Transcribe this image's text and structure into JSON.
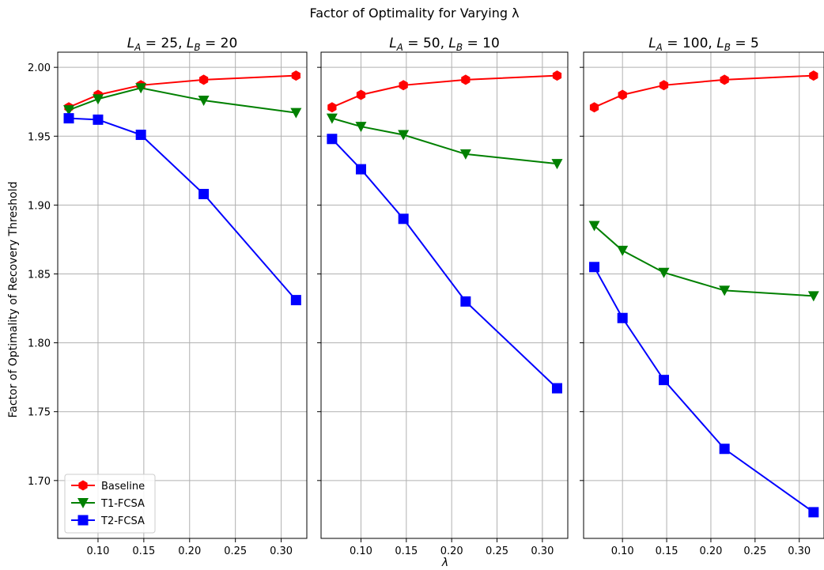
{
  "figure": {
    "suptitle": "Factor of Optimality for Varying λ",
    "ylabel": "Factor of Optimality of Recovery Threshold",
    "xlabel": "λ"
  },
  "legend": {
    "placement": "lower-left",
    "entries": [
      "Baseline",
      "T1-FCSA",
      "T2-FCSA"
    ]
  },
  "colors": {
    "Baseline": "#ff0000",
    "T1-FCSA": "#008000",
    "T2-FCSA": "#0000ff",
    "grid": "#b0b0b0"
  },
  "chart_data": [
    {
      "type": "line",
      "title": "L_A = 25, L_B = 20",
      "x": [
        0.0681,
        0.1,
        0.1468,
        0.2154,
        0.3162
      ],
      "series": [
        {
          "name": "Baseline",
          "marker": "hexagon",
          "values": [
            1.971,
            1.98,
            1.987,
            1.991,
            1.994
          ]
        },
        {
          "name": "T1-FCSA",
          "marker": "triangle-down",
          "values": [
            1.969,
            1.977,
            1.985,
            1.976,
            1.967
          ]
        },
        {
          "name": "T2-FCSA",
          "marker": "square",
          "values": [
            1.963,
            1.962,
            1.951,
            1.908,
            1.831
          ]
        }
      ],
      "xlim": [
        0.056,
        0.328
      ],
      "ylim": [
        1.658,
        2.011
      ],
      "xticks": [
        0.1,
        0.15,
        0.2,
        0.25,
        0.3
      ],
      "xtick_labels": [
        "0.10",
        "0.15",
        "0.20",
        "0.25",
        "0.30"
      ],
      "yticks": [
        1.7,
        1.75,
        1.8,
        1.85,
        1.9,
        1.95,
        2.0
      ],
      "ytick_labels": [
        "1.70",
        "1.75",
        "1.80",
        "1.85",
        "1.90",
        "1.95",
        "2.00"
      ],
      "grid": true
    },
    {
      "type": "line",
      "title": "L_A = 50, L_B = 10",
      "x": [
        0.0681,
        0.1,
        0.1468,
        0.2154,
        0.3162
      ],
      "series": [
        {
          "name": "Baseline",
          "marker": "hexagon",
          "values": [
            1.971,
            1.98,
            1.987,
            1.991,
            1.994
          ]
        },
        {
          "name": "T1-FCSA",
          "marker": "triangle-down",
          "values": [
            1.963,
            1.957,
            1.951,
            1.937,
            1.93
          ]
        },
        {
          "name": "T2-FCSA",
          "marker": "square",
          "values": [
            1.948,
            1.926,
            1.89,
            1.83,
            1.767
          ]
        }
      ],
      "xlim": [
        0.056,
        0.328
      ],
      "ylim": [
        1.658,
        2.011
      ],
      "xticks": [
        0.1,
        0.15,
        0.2,
        0.25,
        0.3
      ],
      "xtick_labels": [
        "0.10",
        "0.15",
        "0.20",
        "0.25",
        "0.30"
      ],
      "yticks": [
        1.7,
        1.75,
        1.8,
        1.85,
        1.9,
        1.95,
        2.0
      ],
      "grid": true
    },
    {
      "type": "line",
      "title": "L_A = 100, L_B = 5",
      "x": [
        0.0681,
        0.1,
        0.1468,
        0.2154,
        0.3162
      ],
      "series": [
        {
          "name": "Baseline",
          "marker": "hexagon",
          "values": [
            1.971,
            1.98,
            1.987,
            1.991,
            1.994
          ]
        },
        {
          "name": "T1-FCSA",
          "marker": "triangle-down",
          "values": [
            1.885,
            1.867,
            1.851,
            1.838,
            1.834
          ]
        },
        {
          "name": "T2-FCSA",
          "marker": "square",
          "values": [
            1.855,
            1.818,
            1.773,
            1.723,
            1.677
          ]
        }
      ],
      "xlim": [
        0.056,
        0.328
      ],
      "ylim": [
        1.658,
        2.011
      ],
      "xticks": [
        0.1,
        0.15,
        0.2,
        0.25,
        0.3
      ],
      "xtick_labels": [
        "0.10",
        "0.15",
        "0.20",
        "0.25",
        "0.30"
      ],
      "yticks": [
        1.7,
        1.75,
        1.8,
        1.85,
        1.9,
        1.95,
        2.0
      ],
      "grid": true
    }
  ]
}
